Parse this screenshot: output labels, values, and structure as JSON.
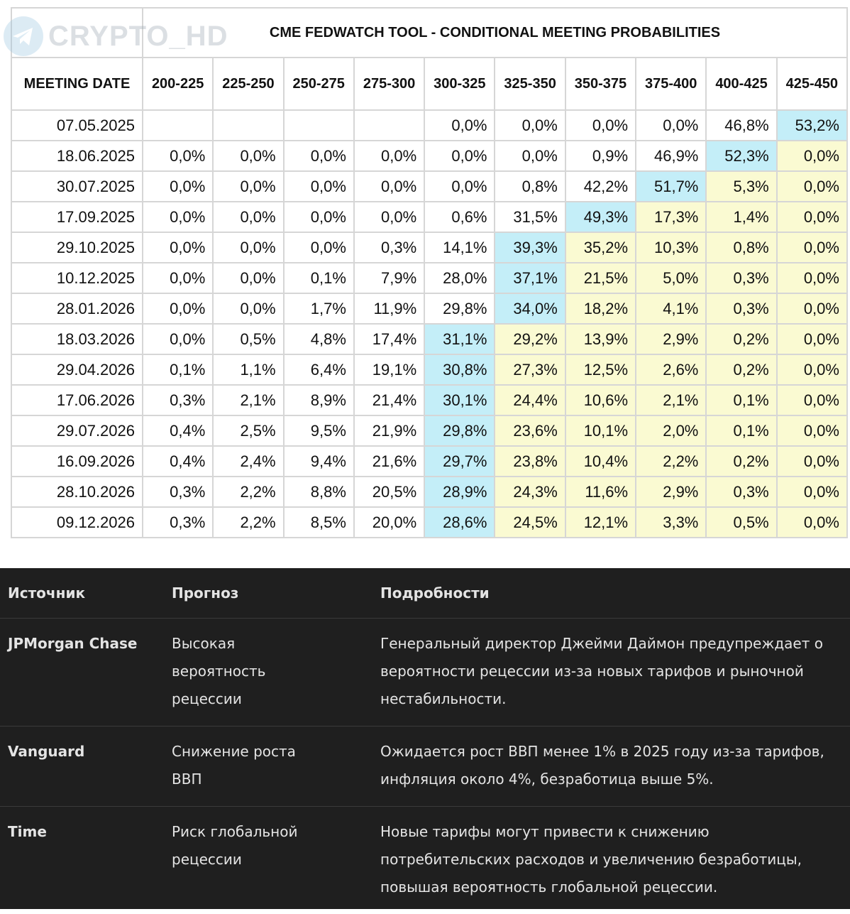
{
  "watermark": "CRYPTO_HD",
  "table": {
    "title": "CME FEDWATCH TOOL - CONDITIONAL MEETING PROBABILITIES",
    "highlight": {
      "peak": "#c4eef8",
      "above": "#fafad2"
    },
    "columns": [
      "MEETING DATE",
      "200-225",
      "225-250",
      "250-275",
      "275-300",
      "300-325",
      "325-350",
      "350-375",
      "375-400",
      "400-425",
      "425-450"
    ],
    "rows": [
      [
        "07.05.2025",
        null,
        null,
        null,
        null,
        "0,0%",
        "0,0%",
        "0,0%",
        "0,0%",
        "46,8%",
        "53,2%"
      ],
      [
        "18.06.2025",
        "0,0%",
        "0,0%",
        "0,0%",
        "0,0%",
        "0,0%",
        "0,0%",
        "0,9%",
        "46,9%",
        "52,3%",
        "0,0%"
      ],
      [
        "30.07.2025",
        "0,0%",
        "0,0%",
        "0,0%",
        "0,0%",
        "0,0%",
        "0,8%",
        "42,2%",
        "51,7%",
        "5,3%",
        "0,0%"
      ],
      [
        "17.09.2025",
        "0,0%",
        "0,0%",
        "0,0%",
        "0,0%",
        "0,6%",
        "31,5%",
        "49,3%",
        "17,3%",
        "1,4%",
        "0,0%"
      ],
      [
        "29.10.2025",
        "0,0%",
        "0,0%",
        "0,0%",
        "0,3%",
        "14,1%",
        "39,3%",
        "35,2%",
        "10,3%",
        "0,8%",
        "0,0%"
      ],
      [
        "10.12.2025",
        "0,0%",
        "0,0%",
        "0,1%",
        "7,9%",
        "28,0%",
        "37,1%",
        "21,5%",
        "5,0%",
        "0,3%",
        "0,0%"
      ],
      [
        "28.01.2026",
        "0,0%",
        "0,0%",
        "1,7%",
        "11,9%",
        "29,8%",
        "34,0%",
        "18,2%",
        "4,1%",
        "0,3%",
        "0,0%"
      ],
      [
        "18.03.2026",
        "0,0%",
        "0,5%",
        "4,8%",
        "17,4%",
        "31,1%",
        "29,2%",
        "13,9%",
        "2,9%",
        "0,2%",
        "0,0%"
      ],
      [
        "29.04.2026",
        "0,1%",
        "1,1%",
        "6,4%",
        "19,1%",
        "30,8%",
        "27,3%",
        "12,5%",
        "2,6%",
        "0,2%",
        "0,0%"
      ],
      [
        "17.06.2026",
        "0,3%",
        "2,1%",
        "8,9%",
        "21,4%",
        "30,1%",
        "24,4%",
        "10,6%",
        "2,1%",
        "0,1%",
        "0,0%"
      ],
      [
        "29.07.2026",
        "0,4%",
        "2,5%",
        "9,5%",
        "21,9%",
        "29,8%",
        "23,6%",
        "10,1%",
        "2,0%",
        "0,1%",
        "0,0%"
      ],
      [
        "16.09.2026",
        "0,4%",
        "2,4%",
        "9,4%",
        "21,6%",
        "29,7%",
        "23,8%",
        "10,4%",
        "2,2%",
        "0,2%",
        "0,0%"
      ],
      [
        "28.10.2026",
        "0,3%",
        "2,2%",
        "8,8%",
        "20,5%",
        "28,9%",
        "24,3%",
        "11,6%",
        "2,9%",
        "0,3%",
        "0,0%"
      ],
      [
        "09.12.2026",
        "0,3%",
        "2,2%",
        "8,5%",
        "20,0%",
        "28,6%",
        "24,5%",
        "12,1%",
        "3,3%",
        "0,5%",
        "0,0%"
      ]
    ]
  },
  "sources": {
    "columns": [
      "Источник",
      "Прогноз",
      "Подробности"
    ],
    "rows": [
      [
        "JPMorgan Chase",
        "Высокая вероятность рецессии",
        "Генеральный директор Джейми Даймон предупреждает о вероятности рецессии из-за новых тарифов и рыночной нестабильности."
      ],
      [
        "Vanguard",
        "Снижение роста ВВП",
        "Ожидается рост ВВП менее 1% в 2025 году из-за тарифов, инфляция около 4%, безработица выше 5%."
      ],
      [
        "Time",
        "Риск глобальной рецессии",
        "Новые тарифы могут привести к снижению потребительских расходов и увеличению безработицы, повышая вероятность глобальной рецессии."
      ]
    ]
  }
}
